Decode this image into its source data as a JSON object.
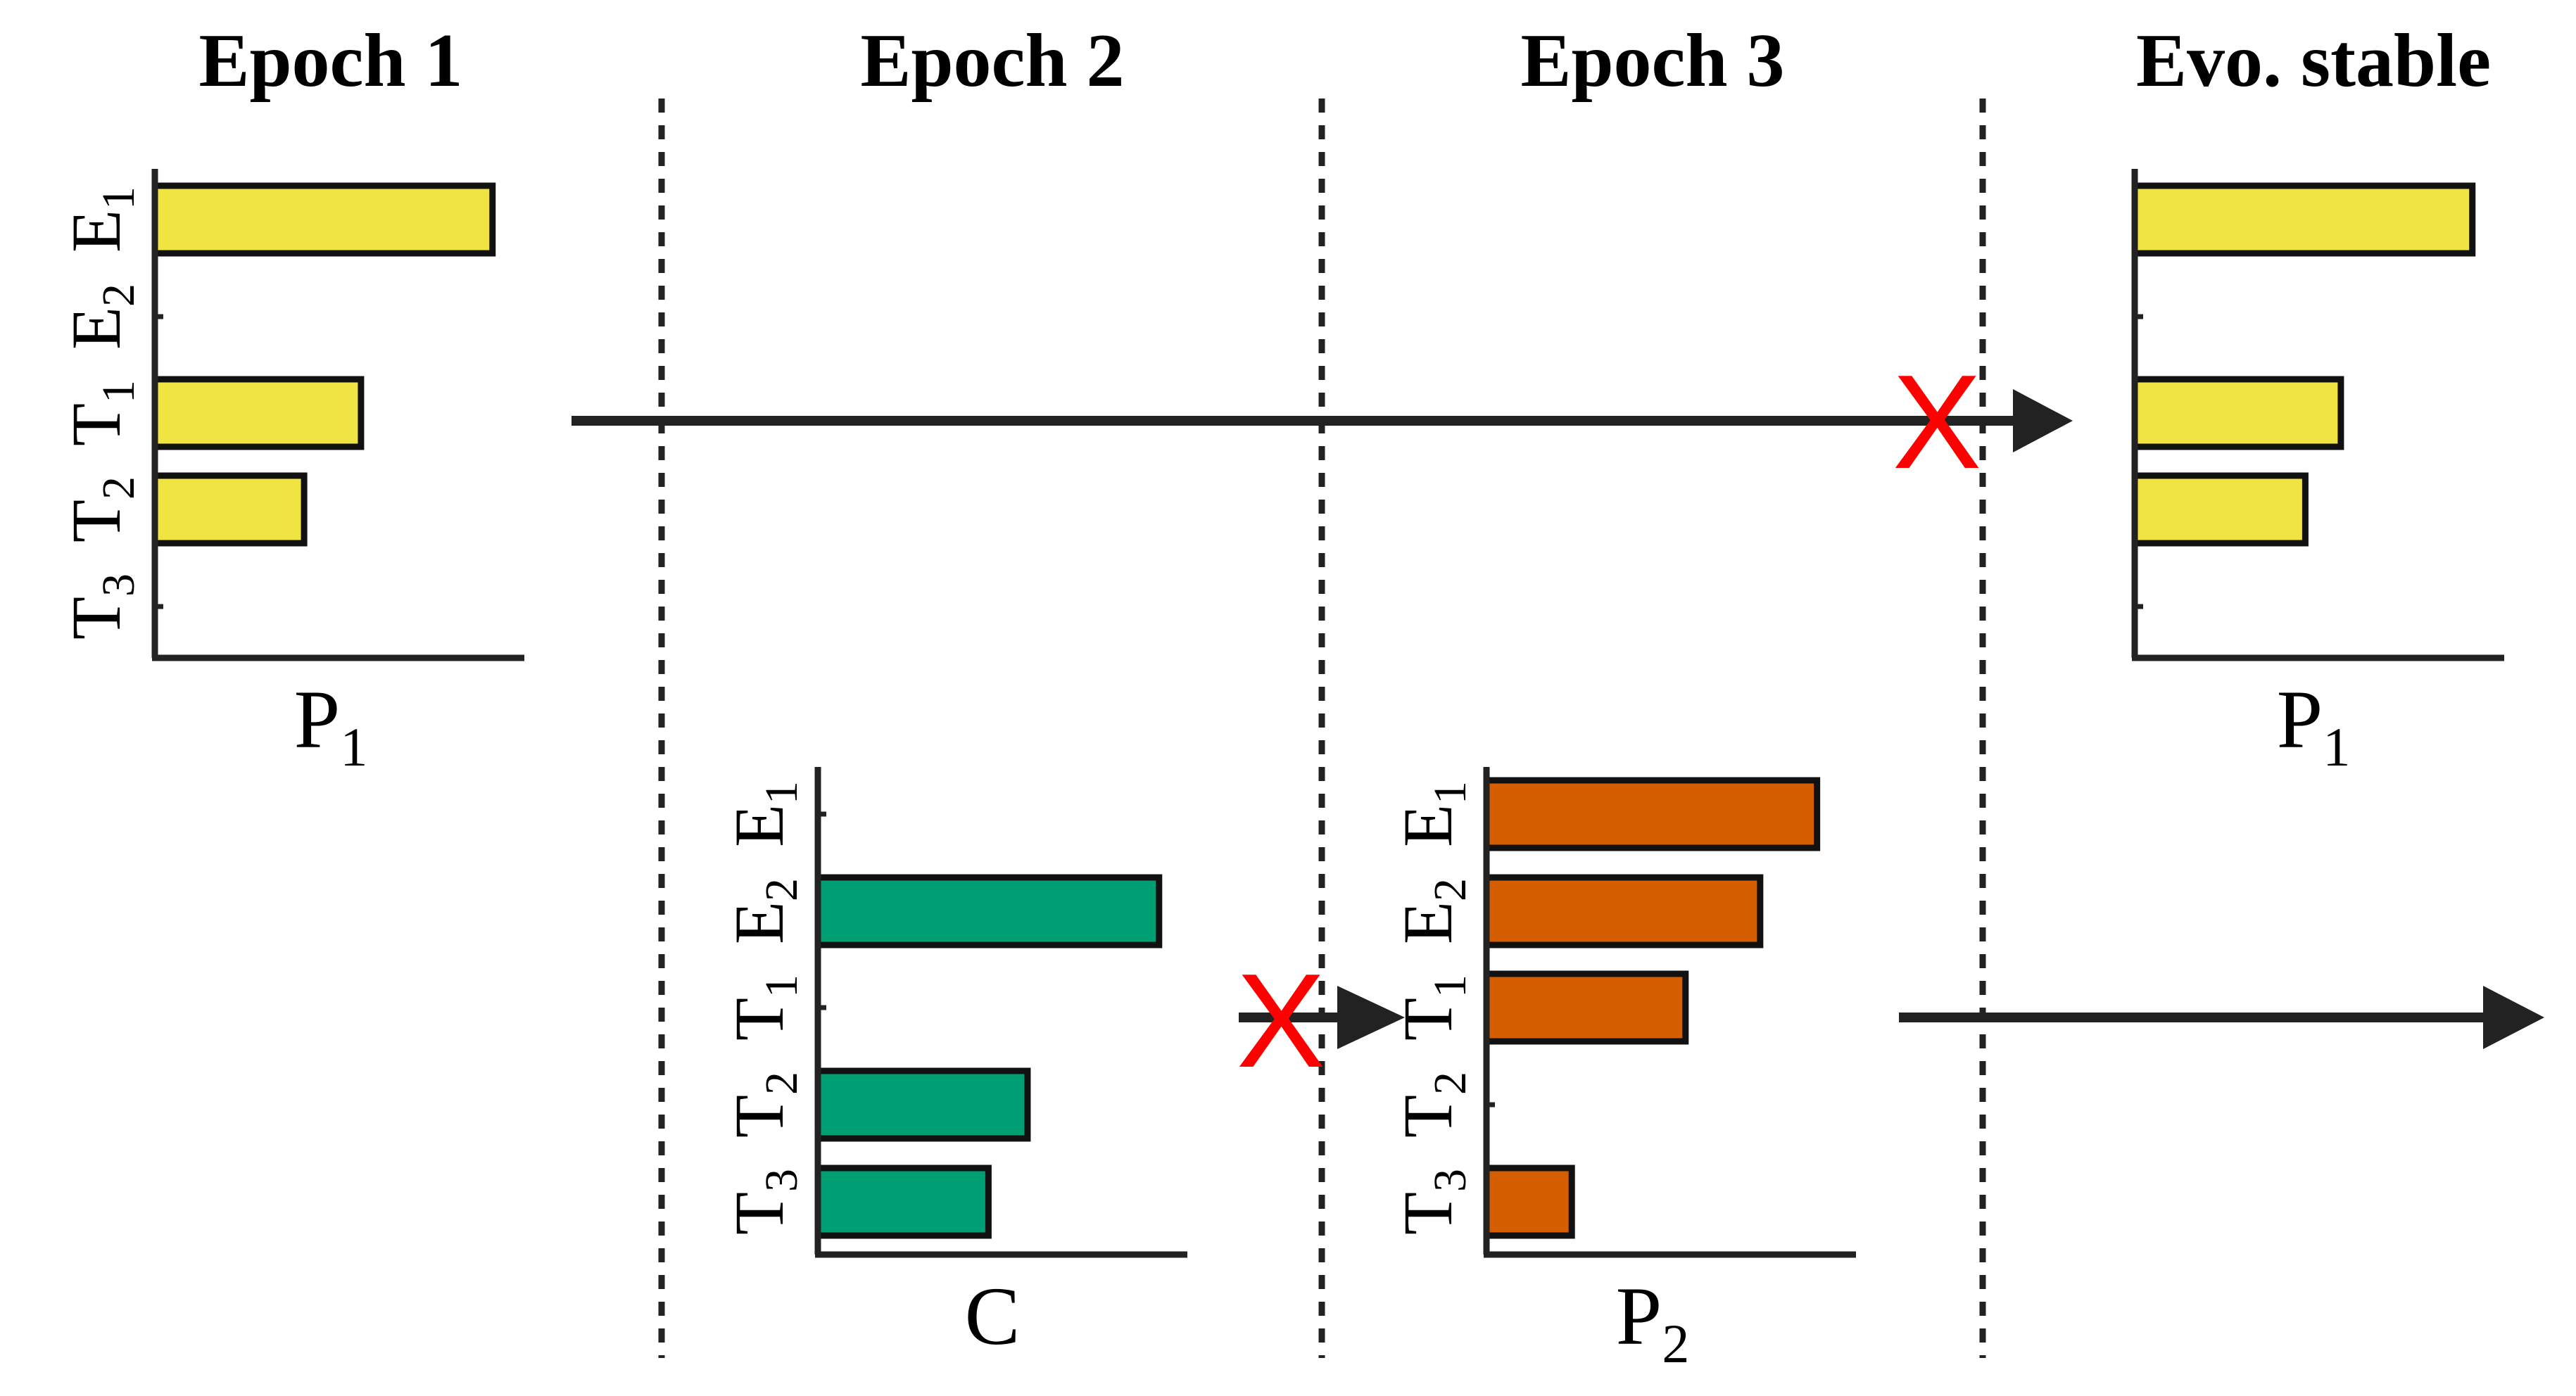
{
  "epochs": [
    {
      "label": "Epoch 1"
    },
    {
      "label": "Epoch 2"
    },
    {
      "label": "Epoch 3"
    },
    {
      "label": "Evo. stable"
    }
  ],
  "categories": [
    {
      "main": "E",
      "sub": "1"
    },
    {
      "main": "E",
      "sub": "2"
    },
    {
      "main": "T",
      "sub": "1"
    },
    {
      "main": "T",
      "sub": "2"
    },
    {
      "main": "T",
      "sub": "3"
    }
  ],
  "charts": [
    {
      "id": "p1-epoch1",
      "xlabel_main": "P",
      "xlabel_sub": "1",
      "color": "#f0e442",
      "values": [
        0.95,
        0,
        0.58,
        0.42,
        0
      ]
    },
    {
      "id": "c-epoch2",
      "xlabel_main": "C",
      "xlabel_sub": "",
      "color": "#009e73",
      "values": [
        0,
        0.96,
        0,
        0.59,
        0.48
      ]
    },
    {
      "id": "p2-epoch3",
      "xlabel_main": "P",
      "xlabel_sub": "2",
      "color": "#d55e00",
      "values": [
        0.93,
        0.77,
        0.56,
        0,
        0.24
      ]
    },
    {
      "id": "p1-stable",
      "xlabel_main": "P",
      "xlabel_sub": "1",
      "color": "#f0e442",
      "values": [
        0.95,
        0,
        0.58,
        0.48,
        0
      ]
    }
  ],
  "cross_marker": "X",
  "colors": {
    "ink": "#222222",
    "cross": "#ff0000",
    "divider": "#222222"
  }
}
